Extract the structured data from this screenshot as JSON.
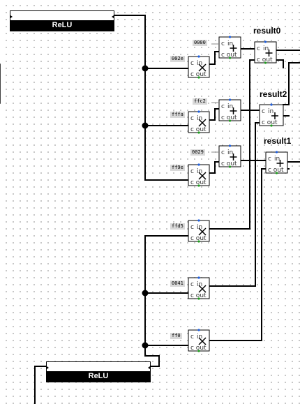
{
  "relu_label": "ReLU",
  "constants": [
    "0000",
    "002e",
    "ffc2",
    "fffa",
    "0029",
    "ff9e",
    "ffd5",
    "0041",
    "ff0"
  ],
  "registers": [
    "result0",
    "result2",
    "result1"
  ],
  "pin_labels": {
    "c": "c",
    "in": "in",
    "cout": "c out"
  },
  "colors": {
    "wire": "#000000",
    "pin_blue": "#2060e0",
    "pin_green": "#20a020",
    "constant_bg": "#d9d9d9"
  }
}
